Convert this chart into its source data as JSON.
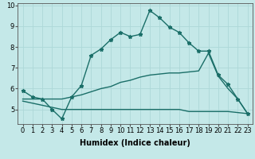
{
  "xlabel": "Humidex (Indice chaleur)",
  "background_color": "#c4e8e8",
  "grid_color": "#add8d8",
  "line_color": "#1a6e68",
  "xlim": [
    -0.5,
    23.5
  ],
  "ylim": [
    4.3,
    10.1
  ],
  "xticks": [
    0,
    1,
    2,
    3,
    4,
    5,
    6,
    7,
    8,
    9,
    10,
    11,
    12,
    13,
    14,
    15,
    16,
    17,
    18,
    19,
    20,
    21,
    22,
    23
  ],
  "yticks": [
    5,
    6,
    7,
    8,
    9,
    10
  ],
  "line1_x": [
    0,
    1,
    2,
    3,
    4,
    5,
    6,
    7,
    8,
    9,
    10,
    11,
    12,
    13,
    14,
    15,
    16,
    17,
    18,
    19,
    20,
    21,
    22,
    23
  ],
  "line1_y": [
    5.9,
    5.6,
    5.5,
    5.0,
    4.55,
    5.6,
    6.15,
    7.6,
    7.9,
    8.35,
    8.7,
    8.5,
    8.6,
    9.75,
    9.4,
    8.95,
    8.7,
    8.2,
    7.8,
    7.8,
    6.65,
    6.2,
    5.5,
    4.8
  ],
  "line2_x": [
    0,
    1,
    2,
    3,
    4,
    5,
    6,
    7,
    8,
    9,
    10,
    11,
    12,
    13,
    14,
    15,
    16,
    17,
    18,
    19,
    20,
    21,
    22,
    23
  ],
  "line2_y": [
    5.5,
    5.5,
    5.5,
    5.5,
    5.5,
    5.6,
    5.7,
    5.85,
    6.0,
    6.1,
    6.3,
    6.4,
    6.55,
    6.65,
    6.7,
    6.75,
    6.75,
    6.8,
    6.85,
    7.7,
    6.6,
    6.0,
    5.5,
    4.8
  ],
  "line3_x": [
    0,
    1,
    2,
    3,
    4,
    5,
    6,
    7,
    8,
    9,
    10,
    11,
    12,
    13,
    14,
    15,
    16,
    17,
    18,
    19,
    20,
    21,
    22,
    23
  ],
  "line3_y": [
    5.4,
    5.3,
    5.2,
    5.1,
    5.0,
    5.0,
    5.0,
    5.0,
    5.0,
    5.0,
    5.0,
    5.0,
    5.0,
    5.0,
    5.0,
    5.0,
    5.0,
    4.9,
    4.9,
    4.9,
    4.9,
    4.9,
    4.85,
    4.8
  ],
  "markersize": 3.5,
  "linewidth": 1.0,
  "tick_labelsize": 6,
  "xlabel_fontsize": 7
}
